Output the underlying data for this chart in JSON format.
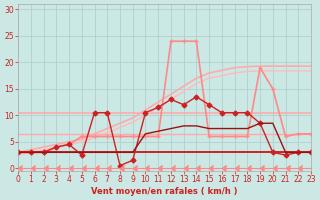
{
  "background_color": "#cce8e4",
  "grid_color": "#aacccc",
  "xlabel": "Vent moyen/en rafales ( km/h )",
  "xlim": [
    0,
    23
  ],
  "ylim": [
    -0.5,
    31
  ],
  "yticks": [
    0,
    5,
    10,
    15,
    20,
    25,
    30
  ],
  "xticks": [
    0,
    1,
    2,
    3,
    4,
    5,
    6,
    7,
    8,
    9,
    10,
    11,
    12,
    13,
    14,
    15,
    16,
    17,
    18,
    19,
    20,
    21,
    22,
    23
  ],
  "series": [
    {
      "label": "flat_10",
      "x": [
        0,
        1,
        2,
        3,
        4,
        5,
        6,
        7,
        8,
        9,
        10,
        11,
        12,
        13,
        14,
        15,
        16,
        17,
        18,
        19,
        20,
        21,
        22,
        23
      ],
      "y": [
        10.5,
        10.5,
        10.5,
        10.5,
        10.5,
        10.5,
        10.5,
        10.5,
        10.5,
        10.5,
        10.5,
        10.5,
        10.5,
        10.5,
        10.5,
        10.5,
        10.5,
        10.5,
        10.5,
        10.5,
        10.5,
        10.5,
        10.5,
        10.5
      ],
      "color": "#ffaaaa",
      "lw": 1.2,
      "marker": null,
      "markersize": 0
    },
    {
      "label": "ramp_high",
      "x": [
        0,
        1,
        2,
        3,
        4,
        5,
        6,
        7,
        8,
        9,
        10,
        11,
        12,
        13,
        14,
        15,
        16,
        17,
        18,
        19,
        20,
        21,
        22,
        23
      ],
      "y": [
        3.0,
        3.5,
        4.0,
        4.5,
        5.0,
        5.5,
        6.5,
        7.5,
        8.5,
        9.5,
        11.0,
        12.5,
        14.0,
        15.5,
        17.0,
        18.0,
        18.5,
        19.0,
        19.2,
        19.3,
        19.3,
        19.3,
        19.3,
        19.3
      ],
      "color": "#ffaaaa",
      "lw": 1.2,
      "marker": null,
      "markersize": 0
    },
    {
      "label": "ramp_low",
      "x": [
        0,
        1,
        2,
        3,
        4,
        5,
        6,
        7,
        8,
        9,
        10,
        11,
        12,
        13,
        14,
        15,
        16,
        17,
        18,
        19,
        20,
        21,
        22,
        23
      ],
      "y": [
        2.5,
        3.0,
        3.5,
        4.0,
        4.5,
        5.0,
        5.8,
        6.7,
        7.7,
        8.7,
        10.0,
        11.5,
        13.0,
        14.5,
        16.0,
        17.0,
        17.5,
        18.0,
        18.3,
        18.4,
        18.4,
        18.4,
        18.4,
        18.4
      ],
      "color": "#ffbbbb",
      "lw": 1.0,
      "marker": null,
      "markersize": 0
    },
    {
      "label": "flat_6",
      "x": [
        0,
        1,
        2,
        3,
        4,
        5,
        6,
        7,
        8,
        9,
        10,
        11,
        12,
        13,
        14,
        15,
        16,
        17,
        18,
        19,
        20,
        21,
        22,
        23
      ],
      "y": [
        6.5,
        6.5,
        6.5,
        6.5,
        6.5,
        6.5,
        6.5,
        6.5,
        6.5,
        6.5,
        6.5,
        6.5,
        6.5,
        6.5,
        6.5,
        6.5,
        6.5,
        6.5,
        6.5,
        6.5,
        6.5,
        6.5,
        6.5,
        6.5
      ],
      "color": "#ffaaaa",
      "lw": 1.0,
      "marker": null,
      "markersize": 0
    },
    {
      "label": "pink_dotmarker",
      "x": [
        0,
        1,
        2,
        3,
        4,
        5,
        6,
        7,
        8,
        9,
        10,
        11,
        12,
        13,
        14,
        15,
        16,
        17,
        18,
        19,
        20,
        21,
        22,
        23
      ],
      "y": [
        3.0,
        3.0,
        3.0,
        4.0,
        4.5,
        6.0,
        6.0,
        6.0,
        6.0,
        6.0,
        6.0,
        6.0,
        24.0,
        24.0,
        24.0,
        6.0,
        6.0,
        6.0,
        6.0,
        19.0,
        15.0,
        6.0,
        6.5,
        6.5
      ],
      "color": "#ff8888",
      "lw": 1.2,
      "marker": "+",
      "markersize": 3
    },
    {
      "label": "flat_3_dark",
      "x": [
        0,
        1,
        2,
        3,
        4,
        5,
        6,
        7,
        8,
        9,
        10,
        11,
        12,
        13,
        14,
        15,
        16,
        17,
        18,
        19,
        20,
        21,
        22,
        23
      ],
      "y": [
        3.0,
        3.0,
        3.0,
        3.0,
        3.0,
        3.0,
        3.0,
        3.0,
        3.0,
        3.0,
        3.0,
        3.0,
        3.0,
        3.0,
        3.0,
        3.0,
        3.0,
        3.0,
        3.0,
        3.0,
        3.0,
        3.0,
        3.0,
        3.0
      ],
      "color": "#cc2222",
      "lw": 1.4,
      "marker": null,
      "markersize": 0
    },
    {
      "label": "dark_triangle_line",
      "x": [
        0,
        1,
        2,
        3,
        4,
        5,
        6,
        7,
        8,
        9,
        10,
        11,
        12,
        13,
        14,
        15,
        16,
        17,
        18,
        19,
        20,
        21,
        22,
        23
      ],
      "y": [
        3.0,
        3.0,
        3.0,
        4.0,
        4.5,
        2.5,
        10.5,
        10.5,
        0.5,
        1.5,
        10.5,
        11.5,
        13.0,
        12.0,
        13.5,
        12.0,
        10.5,
        10.5,
        10.5,
        8.5,
        3.0,
        2.5,
        3.0,
        3.0
      ],
      "color": "#cc2222",
      "lw": 1.0,
      "marker": "D",
      "markersize": 2.5
    },
    {
      "label": "dark_mid",
      "x": [
        0,
        1,
        2,
        3,
        4,
        5,
        6,
        7,
        8,
        9,
        10,
        11,
        12,
        13,
        14,
        15,
        16,
        17,
        18,
        19,
        20,
        21,
        22,
        23
      ],
      "y": [
        3.0,
        3.0,
        3.0,
        3.0,
        3.0,
        3.0,
        3.0,
        3.0,
        3.0,
        3.0,
        6.5,
        7.0,
        7.5,
        8.0,
        8.0,
        7.5,
        7.5,
        7.5,
        7.5,
        8.5,
        8.5,
        3.0,
        3.0,
        3.0
      ],
      "color": "#991111",
      "lw": 1.0,
      "marker": null,
      "markersize": 0
    },
    {
      "label": "bottom_arrows",
      "x": [
        0,
        1,
        2,
        3,
        4,
        5,
        6,
        7,
        8,
        9,
        10,
        11,
        12,
        13,
        14,
        15,
        16,
        17,
        18,
        19,
        20,
        21,
        22,
        23
      ],
      "y": [
        0,
        0,
        0,
        0,
        0,
        0,
        0,
        0,
        0,
        0,
        0,
        0,
        0,
        0,
        0,
        0,
        0,
        0,
        0,
        0,
        0,
        0,
        0,
        0
      ],
      "color": "#ff8888",
      "lw": 0.8,
      "marker": 4,
      "markersize": 4
    }
  ]
}
